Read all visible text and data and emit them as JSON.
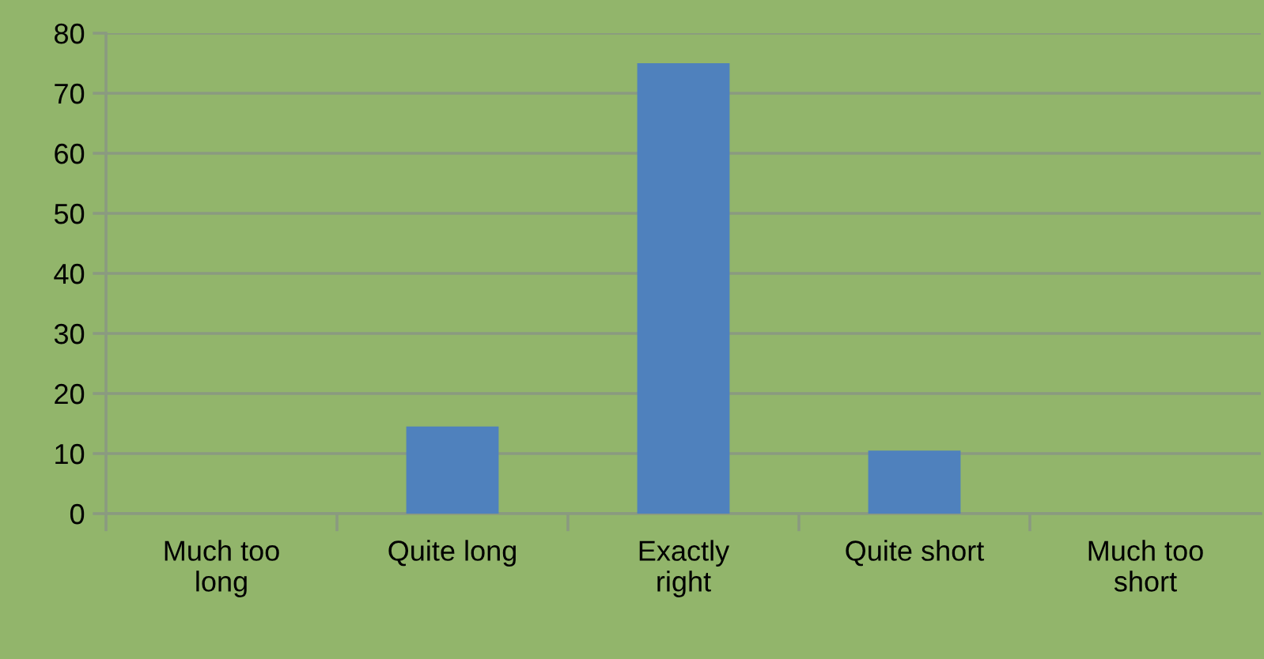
{
  "chart_data": {
    "type": "bar",
    "categories": [
      "Much too long",
      "Quite long",
      "Exactly right",
      "Quite short",
      "Much too short"
    ],
    "values": [
      0,
      14.5,
      75,
      10.5,
      0
    ],
    "color": "#4f81bd",
    "ylim": [
      0,
      80
    ],
    "yticks": [
      0,
      10,
      20,
      30,
      40,
      50,
      60,
      70,
      80
    ],
    "grid": "y",
    "legend": false
  }
}
